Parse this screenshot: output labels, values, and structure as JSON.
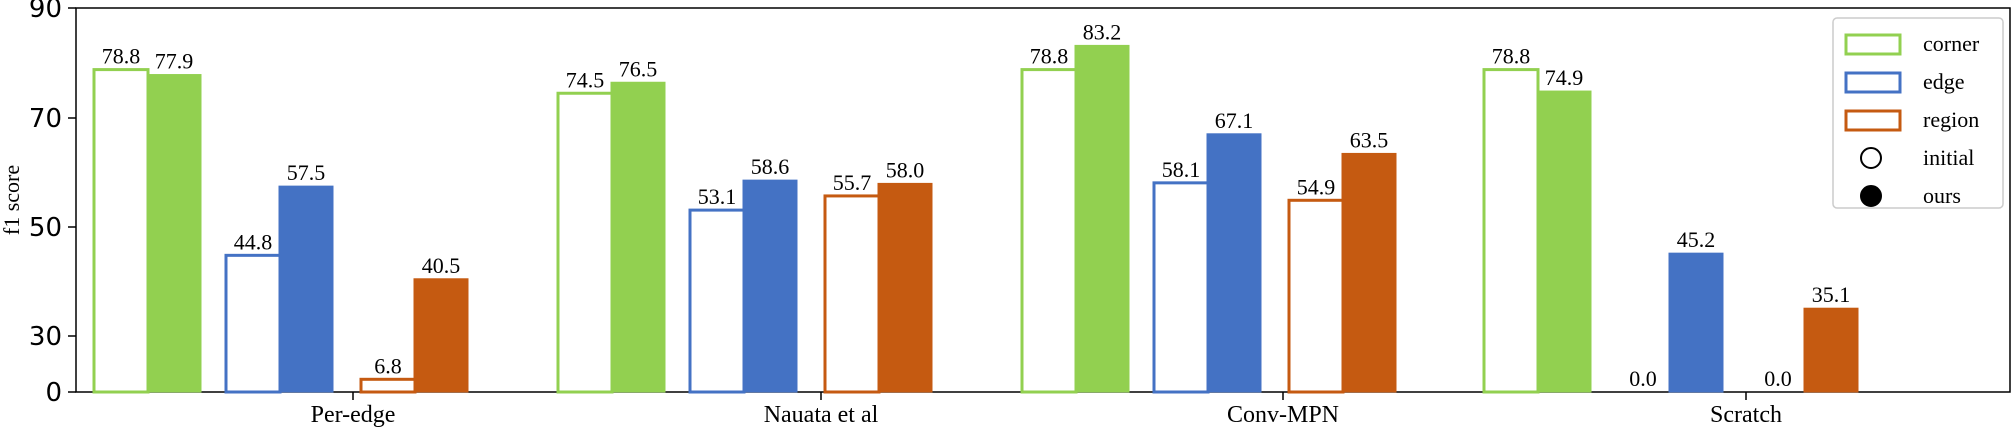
{
  "chart_data": {
    "type": "bar",
    "categories": [
      "Per-edge",
      "Nauata et al",
      "Conv-MPN",
      "Scratch"
    ],
    "ylabel": "f1 score",
    "xlabel": "",
    "ylim": [
      0,
      90
    ],
    "y_ticks": [
      "0",
      "30",
      "50",
      "70",
      "90"
    ],
    "legend_position": "top-right",
    "legend": [
      {
        "label": "corner",
        "kind": "corner"
      },
      {
        "label": "edge",
        "kind": "edge"
      },
      {
        "label": "region",
        "kind": "region"
      },
      {
        "label": "initial",
        "kind": "initial"
      },
      {
        "label": "ours",
        "kind": "ours"
      }
    ],
    "series": [
      {
        "metric": "corner",
        "variant": "initial",
        "color": "#92d050",
        "filled": false,
        "values": [
          78.8,
          74.5,
          78.8,
          78.8
        ],
        "labels": [
          "78.8",
          "74.5",
          "78.8",
          "78.8"
        ]
      },
      {
        "metric": "corner",
        "variant": "ours",
        "color": "#92d050",
        "filled": true,
        "values": [
          77.9,
          76.5,
          83.2,
          74.9
        ],
        "labels": [
          "77.9",
          "76.5",
          "83.2",
          "74.9"
        ]
      },
      {
        "metric": "edge",
        "variant": "initial",
        "color": "#4472c4",
        "filled": false,
        "values": [
          44.8,
          53.1,
          58.1,
          0.0
        ],
        "labels": [
          "44.8",
          "53.1",
          "58.1",
          "0.0"
        ]
      },
      {
        "metric": "edge",
        "variant": "ours",
        "color": "#4472c4",
        "filled": true,
        "values": [
          57.5,
          58.6,
          67.1,
          45.2
        ],
        "labels": [
          "57.5",
          "58.6",
          "67.1",
          "45.2"
        ]
      },
      {
        "metric": "region",
        "variant": "initial",
        "color": "#c55a11",
        "filled": false,
        "values": [
          6.8,
          55.7,
          54.9,
          0.0
        ],
        "labels": [
          "6.8",
          "55.7",
          "54.9",
          "0.0"
        ]
      },
      {
        "metric": "region",
        "variant": "ours",
        "color": "#c55a11",
        "filled": true,
        "values": [
          40.5,
          58.0,
          63.5,
          35.1
        ],
        "labels": [
          "40.5",
          "58.0",
          "63.5",
          "35.1"
        ]
      }
    ]
  }
}
